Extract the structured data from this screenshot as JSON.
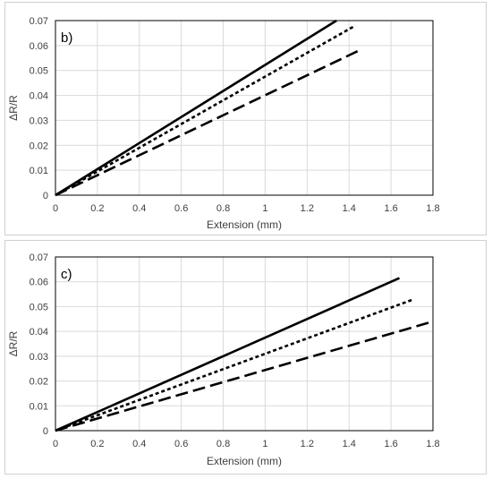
{
  "chart_data": [
    {
      "type": "line",
      "panel_label": "b)",
      "xlabel": "Extension (mm)",
      "ylabel": "ΔR/R",
      "xlim": [
        0,
        1.8
      ],
      "ylim": [
        0,
        0.07
      ],
      "x_ticks": [
        "0",
        "0.2",
        "0.4",
        "0.6",
        "0.8",
        "1",
        "1.2",
        "1.4",
        "1.6",
        "1.8"
      ],
      "y_ticks": [
        "0",
        "0.01",
        "0.02",
        "0.03",
        "0.04",
        "0.05",
        "0.06",
        "0.07"
      ],
      "grid": true,
      "series": [
        {
          "style": "solid",
          "x": [
            0,
            1.34
          ],
          "y": [
            0,
            0.07
          ]
        },
        {
          "style": "short-dash",
          "x": [
            0,
            1.43
          ],
          "y": [
            0,
            0.068
          ]
        },
        {
          "style": "long-dash",
          "x": [
            0,
            1.46
          ],
          "y": [
            0,
            0.0585
          ]
        }
      ]
    },
    {
      "type": "line",
      "panel_label": "c)",
      "xlabel": "Extension (mm)",
      "ylabel": "ΔR/R",
      "xlim": [
        0,
        1.8
      ],
      "ylim": [
        0,
        0.07
      ],
      "x_ticks": [
        "0",
        "0.2",
        "0.4",
        "0.6",
        "0.8",
        "1",
        "1.2",
        "1.4",
        "1.6",
        "1.8"
      ],
      "y_ticks": [
        "0",
        "0.01",
        "0.02",
        "0.03",
        "0.04",
        "0.05",
        "0.06",
        "0.07"
      ],
      "grid": true,
      "series": [
        {
          "style": "solid",
          "x": [
            0,
            1.64
          ],
          "y": [
            0,
            0.0615
          ]
        },
        {
          "style": "short-dash",
          "x": [
            0,
            1.71
          ],
          "y": [
            0,
            0.053
          ]
        },
        {
          "style": "long-dash",
          "x": [
            0,
            1.78
          ],
          "y": [
            0,
            0.0435
          ]
        }
      ]
    }
  ]
}
